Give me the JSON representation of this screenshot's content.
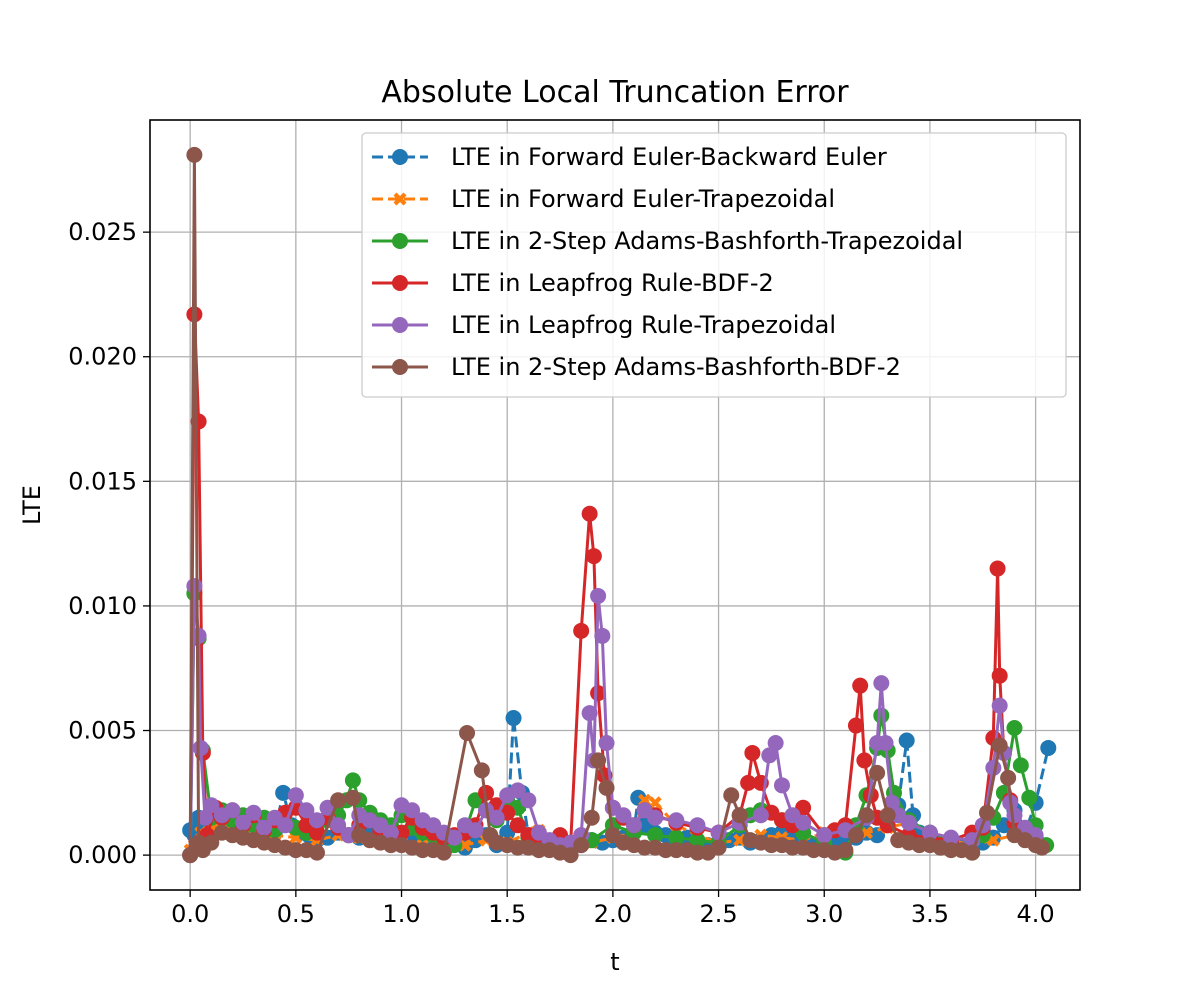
{
  "chart_data": {
    "type": "line",
    "title": "Absolute Local Truncation Error",
    "xlabel": "t",
    "ylabel": "LTE",
    "xlim": [
      -0.19,
      4.21
    ],
    "ylim": [
      -0.0014,
      0.0295
    ],
    "x_ticks": [
      0.0,
      0.5,
      1.0,
      1.5,
      2.0,
      2.5,
      3.0,
      3.5,
      4.0
    ],
    "x_tick_labels": [
      "0.0",
      "0.5",
      "1.0",
      "1.5",
      "2.0",
      "2.5",
      "3.0",
      "3.5",
      "4.0"
    ],
    "y_ticks": [
      0.0,
      0.005,
      0.01,
      0.015,
      0.02,
      0.025
    ],
    "y_tick_labels": [
      "0.000",
      "0.005",
      "0.010",
      "0.015",
      "0.020",
      "0.025"
    ],
    "grid": true,
    "legend_position": "top-right",
    "series": [
      {
        "name": "LTE in Forward Euler-Backward Euler",
        "color": "#1f77b4",
        "linestyle": "dashed",
        "marker": "circle",
        "x": [
          0.0,
          0.02,
          0.04,
          0.07,
          0.1,
          0.15,
          0.2,
          0.25,
          0.3,
          0.35,
          0.4,
          0.44,
          0.48,
          0.52,
          0.56,
          0.6,
          0.65,
          0.7,
          0.75,
          0.8,
          0.85,
          0.9,
          0.95,
          1.0,
          1.05,
          1.1,
          1.15,
          1.2,
          1.25,
          1.3,
          1.35,
          1.4,
          1.45,
          1.5,
          1.53,
          1.57,
          1.6,
          1.65,
          1.7,
          1.75,
          1.8,
          1.85,
          1.9,
          1.95,
          2.0,
          2.05,
          2.1,
          2.12,
          2.15,
          2.2,
          2.25,
          2.3,
          2.35,
          2.4,
          2.45,
          2.5,
          2.55,
          2.6,
          2.65,
          2.7,
          2.75,
          2.8,
          2.85,
          2.9,
          2.95,
          3.0,
          3.05,
          3.1,
          3.15,
          3.2,
          3.25,
          3.3,
          3.35,
          3.39,
          3.42,
          3.45,
          3.5,
          3.55,
          3.6,
          3.65,
          3.7,
          3.75,
          3.8,
          3.85,
          3.9,
          3.95,
          4.0,
          4.06
        ],
        "y": [
          0.001,
          0.0008,
          0.0015,
          0.0012,
          0.0009,
          0.0011,
          0.001,
          0.0009,
          0.0008,
          0.0007,
          0.0009,
          0.0025,
          0.0012,
          0.0009,
          0.0008,
          0.0006,
          0.0007,
          0.0009,
          0.0008,
          0.0007,
          0.0009,
          0.0008,
          0.0006,
          0.0007,
          0.0005,
          0.0006,
          0.0005,
          0.0004,
          0.0005,
          0.0003,
          0.0006,
          0.0008,
          0.0004,
          0.0009,
          0.0055,
          0.0025,
          0.0008,
          0.0006,
          0.0004,
          0.0005,
          0.0003,
          0.0004,
          0.0006,
          0.0005,
          0.0006,
          0.0007,
          0.001,
          0.0023,
          0.0012,
          0.0009,
          0.0008,
          0.0006,
          0.0007,
          0.0005,
          0.0004,
          0.0004,
          0.0006,
          0.0007,
          0.0005,
          0.0006,
          0.0008,
          0.0009,
          0.0007,
          0.0005,
          0.0004,
          0.0003,
          0.0005,
          0.0006,
          0.0007,
          0.0009,
          0.0008,
          0.0012,
          0.002,
          0.0046,
          0.0016,
          0.0009,
          0.0007,
          0.0005,
          0.0004,
          0.0003,
          0.0004,
          0.0005,
          0.0007,
          0.0012,
          0.0018,
          0.0009,
          0.0021,
          0.0043
        ]
      },
      {
        "name": "LTE in Forward Euler-Trapezoidal",
        "color": "#ff7f0e",
        "linestyle": "dashed",
        "marker": "x",
        "x": [
          0.0,
          0.02,
          0.05,
          0.1,
          0.15,
          0.2,
          0.3,
          0.4,
          0.5,
          0.6,
          0.7,
          0.8,
          0.9,
          1.0,
          1.1,
          1.2,
          1.3,
          1.4,
          1.5,
          1.6,
          1.65,
          1.7,
          1.8,
          1.9,
          2.0,
          2.1,
          2.15,
          2.2,
          2.3,
          2.4,
          2.5,
          2.6,
          2.7,
          2.8,
          2.9,
          3.0,
          3.1,
          3.2,
          3.3,
          3.4,
          3.5,
          3.6,
          3.7,
          3.8,
          3.9,
          4.0
        ],
        "y": [
          0.0002,
          0.0004,
          0.0009,
          0.0011,
          0.001,
          0.0012,
          0.0009,
          0.0008,
          0.0007,
          0.0006,
          0.0008,
          0.0007,
          0.0006,
          0.0005,
          0.0004,
          0.0003,
          0.0004,
          0.0006,
          0.0005,
          0.0009,
          0.001,
          0.0006,
          0.0004,
          0.0005,
          0.0007,
          0.0009,
          0.0022,
          0.0021,
          0.0012,
          0.0008,
          0.0005,
          0.0006,
          0.0008,
          0.0007,
          0.0006,
          0.0009,
          0.001,
          0.0009,
          0.0011,
          0.0013,
          0.0009,
          0.0006,
          0.0004,
          0.0006,
          0.0008,
          0.0005
        ]
      },
      {
        "name": "LTE in 2-Step Adams-Bashforth-Trapezoidal",
        "color": "#2ca02c",
        "linestyle": "solid",
        "marker": "circle",
        "x": [
          0.0,
          0.02,
          0.04,
          0.06,
          0.1,
          0.15,
          0.2,
          0.25,
          0.3,
          0.35,
          0.4,
          0.45,
          0.5,
          0.55,
          0.6,
          0.65,
          0.7,
          0.74,
          0.77,
          0.8,
          0.85,
          0.9,
          0.95,
          1.0,
          1.05,
          1.1,
          1.15,
          1.2,
          1.25,
          1.3,
          1.35,
          1.4,
          1.45,
          1.5,
          1.55,
          1.6,
          1.7,
          1.8,
          1.9,
          2.0,
          2.1,
          2.2,
          2.3,
          2.4,
          2.5,
          2.6,
          2.65,
          2.7,
          2.8,
          2.9,
          3.0,
          3.1,
          3.15,
          3.2,
          3.25,
          3.27,
          3.3,
          3.33,
          3.4,
          3.5,
          3.6,
          3.7,
          3.75,
          3.8,
          3.85,
          3.9,
          3.93,
          3.97,
          4.0,
          4.05
        ],
        "y": [
          0.0,
          0.0105,
          0.0087,
          0.0042,
          0.0015,
          0.0018,
          0.0014,
          0.0016,
          0.0012,
          0.0015,
          0.001,
          0.0013,
          0.0011,
          0.0009,
          0.0012,
          0.0014,
          0.0016,
          0.0022,
          0.003,
          0.0022,
          0.0017,
          0.0014,
          0.0012,
          0.0016,
          0.0011,
          0.0009,
          0.0008,
          0.0006,
          0.0004,
          0.0009,
          0.0022,
          0.0018,
          0.0014,
          0.0022,
          0.0019,
          0.0007,
          0.0005,
          0.0004,
          0.0006,
          0.0012,
          0.0009,
          0.0008,
          0.0007,
          0.0006,
          0.0005,
          0.0012,
          0.0016,
          0.0018,
          0.0014,
          0.0009,
          0.0005,
          0.0001,
          0.0012,
          0.0024,
          0.0043,
          0.0056,
          0.0042,
          0.0025,
          0.0014,
          0.0009,
          0.0005,
          0.0001,
          0.0008,
          0.0015,
          0.0025,
          0.0051,
          0.0036,
          0.0023,
          0.0012,
          0.0004
        ]
      },
      {
        "name": "LTE in Leapfrog Rule-BDF-2",
        "color": "#d62728",
        "linestyle": "solid",
        "marker": "circle",
        "x": [
          0.0,
          0.02,
          0.04,
          0.06,
          0.08,
          0.12,
          0.15,
          0.2,
          0.25,
          0.3,
          0.35,
          0.4,
          0.45,
          0.5,
          0.55,
          0.6,
          0.65,
          0.7,
          0.75,
          0.8,
          0.85,
          0.9,
          0.95,
          1.0,
          1.05,
          1.1,
          1.15,
          1.2,
          1.25,
          1.3,
          1.35,
          1.4,
          1.45,
          1.5,
          1.55,
          1.6,
          1.65,
          1.7,
          1.75,
          1.8,
          1.85,
          1.89,
          1.91,
          1.93,
          1.96,
          2.0,
          2.05,
          2.1,
          2.15,
          2.2,
          2.3,
          2.4,
          2.5,
          2.6,
          2.64,
          2.66,
          2.7,
          2.75,
          2.8,
          2.85,
          2.9,
          3.0,
          3.05,
          3.1,
          3.15,
          3.17,
          3.19,
          3.22,
          3.25,
          3.3,
          3.4,
          3.5,
          3.6,
          3.7,
          3.75,
          3.8,
          3.82,
          3.83,
          3.85,
          3.88,
          3.9,
          3.95,
          4.0
        ],
        "y": [
          0.0,
          0.0217,
          0.0174,
          0.0041,
          0.0008,
          0.0019,
          0.0015,
          0.0018,
          0.0012,
          0.0016,
          0.001,
          0.0014,
          0.0017,
          0.0019,
          0.0012,
          0.0009,
          0.0015,
          0.0011,
          0.0008,
          0.0012,
          0.0014,
          0.001,
          0.0008,
          0.0009,
          0.0015,
          0.0011,
          0.0009,
          0.0007,
          0.0008,
          0.0009,
          0.0012,
          0.0025,
          0.002,
          0.0017,
          0.0012,
          0.0008,
          0.0006,
          0.0005,
          0.0008,
          0.0004,
          0.009,
          0.0137,
          0.012,
          0.0065,
          0.0032,
          0.0019,
          0.0015,
          0.0012,
          0.0018,
          0.0016,
          0.0013,
          0.0011,
          0.0009,
          0.0016,
          0.0029,
          0.0041,
          0.0029,
          0.0017,
          0.0014,
          0.0012,
          0.0019,
          0.0008,
          0.001,
          0.0012,
          0.0052,
          0.0068,
          0.0038,
          0.0024,
          0.0015,
          0.0012,
          0.0008,
          0.0007,
          0.0006,
          0.0009,
          0.0011,
          0.0047,
          0.0115,
          0.0072,
          0.0041,
          0.0022,
          0.0013,
          0.0009,
          0.0006
        ]
      },
      {
        "name": "LTE in Leapfrog Rule-Trapezoidal",
        "color": "#9467bd",
        "linestyle": "solid",
        "marker": "circle",
        "x": [
          0.0,
          0.02,
          0.04,
          0.05,
          0.07,
          0.1,
          0.15,
          0.2,
          0.25,
          0.3,
          0.35,
          0.4,
          0.45,
          0.5,
          0.55,
          0.6,
          0.65,
          0.7,
          0.75,
          0.8,
          0.85,
          0.9,
          0.95,
          1.0,
          1.05,
          1.1,
          1.15,
          1.2,
          1.25,
          1.3,
          1.35,
          1.4,
          1.45,
          1.5,
          1.55,
          1.6,
          1.65,
          1.7,
          1.75,
          1.8,
          1.85,
          1.89,
          1.91,
          1.93,
          1.95,
          1.97,
          2.0,
          2.05,
          2.1,
          2.15,
          2.2,
          2.3,
          2.4,
          2.5,
          2.6,
          2.7,
          2.74,
          2.77,
          2.8,
          2.85,
          2.9,
          3.0,
          3.1,
          3.2,
          3.25,
          3.27,
          3.29,
          3.32,
          3.35,
          3.4,
          3.5,
          3.6,
          3.7,
          3.75,
          3.8,
          3.83,
          3.85,
          3.88,
          3.9,
          3.95,
          4.0
        ],
        "y": [
          0.0,
          0.0108,
          0.0088,
          0.0043,
          0.0015,
          0.002,
          0.0016,
          0.0018,
          0.0013,
          0.0017,
          0.0011,
          0.0015,
          0.0012,
          0.0024,
          0.0018,
          0.0014,
          0.0019,
          0.0012,
          0.0008,
          0.0016,
          0.0014,
          0.0012,
          0.0009,
          0.002,
          0.0018,
          0.0014,
          0.0012,
          0.0009,
          0.0007,
          0.0012,
          0.001,
          0.0018,
          0.0015,
          0.0024,
          0.0026,
          0.0022,
          0.0009,
          0.0006,
          0.0004,
          0.0005,
          0.0008,
          0.0057,
          0.0038,
          0.0104,
          0.0088,
          0.0045,
          0.0019,
          0.0016,
          0.0012,
          0.0018,
          0.0015,
          0.0014,
          0.0012,
          0.0009,
          0.0013,
          0.0016,
          0.004,
          0.0045,
          0.0028,
          0.0016,
          0.0013,
          0.0008,
          0.001,
          0.0015,
          0.0045,
          0.0069,
          0.0045,
          0.0021,
          0.0016,
          0.0013,
          0.0009,
          0.0007,
          0.0006,
          0.0012,
          0.0035,
          0.006,
          0.0041,
          0.0021,
          0.0016,
          0.0011,
          0.0008
        ]
      },
      {
        "name": "LTE in 2-Step Adams-Bashforth-BDF-2",
        "color": "#8c564b",
        "linestyle": "solid",
        "marker": "circle",
        "x": [
          0.0,
          0.02,
          0.04,
          0.06,
          0.1,
          0.15,
          0.2,
          0.25,
          0.3,
          0.35,
          0.4,
          0.45,
          0.5,
          0.55,
          0.6,
          0.7,
          0.77,
          0.8,
          0.85,
          0.9,
          0.95,
          1.0,
          1.05,
          1.1,
          1.15,
          1.2,
          1.31,
          1.38,
          1.42,
          1.45,
          1.5,
          1.55,
          1.6,
          1.65,
          1.7,
          1.75,
          1.8,
          1.85,
          1.9,
          1.93,
          1.97,
          2.0,
          2.05,
          2.1,
          2.15,
          2.2,
          2.25,
          2.3,
          2.35,
          2.4,
          2.45,
          2.5,
          2.56,
          2.6,
          2.65,
          2.7,
          2.75,
          2.8,
          2.85,
          2.9,
          2.95,
          3.0,
          3.05,
          3.1,
          3.15,
          3.2,
          3.25,
          3.3,
          3.35,
          3.4,
          3.45,
          3.5,
          3.55,
          3.6,
          3.65,
          3.7,
          3.77,
          3.83,
          3.87,
          3.9,
          3.95,
          4.0,
          4.03
        ],
        "y": [
          0.0,
          0.0281,
          0.0005,
          0.0002,
          0.0005,
          0.0009,
          0.0008,
          0.0007,
          0.0006,
          0.0005,
          0.0004,
          0.0003,
          0.0002,
          0.0002,
          0.0001,
          0.0022,
          0.0023,
          0.0008,
          0.0006,
          0.0005,
          0.0004,
          0.0004,
          0.0003,
          0.0002,
          0.0002,
          0.0001,
          0.0049,
          0.0034,
          0.0008,
          0.0005,
          0.0004,
          0.0003,
          0.0003,
          0.0002,
          0.0002,
          0.0001,
          0.0,
          0.0004,
          0.0015,
          0.0038,
          0.0027,
          0.0008,
          0.0005,
          0.0004,
          0.0003,
          0.0003,
          0.0002,
          0.0002,
          0.0002,
          0.0001,
          0.0001,
          0.0003,
          0.0024,
          0.0016,
          0.0006,
          0.0005,
          0.0004,
          0.0004,
          0.0003,
          0.0003,
          0.0002,
          0.0002,
          0.0001,
          0.0002,
          0.0008,
          0.0016,
          0.0033,
          0.0016,
          0.0006,
          0.0005,
          0.0004,
          0.0004,
          0.0003,
          0.0002,
          0.0002,
          0.0001,
          0.0017,
          0.0044,
          0.0031,
          0.0008,
          0.0006,
          0.0004,
          0.0003
        ]
      }
    ]
  }
}
